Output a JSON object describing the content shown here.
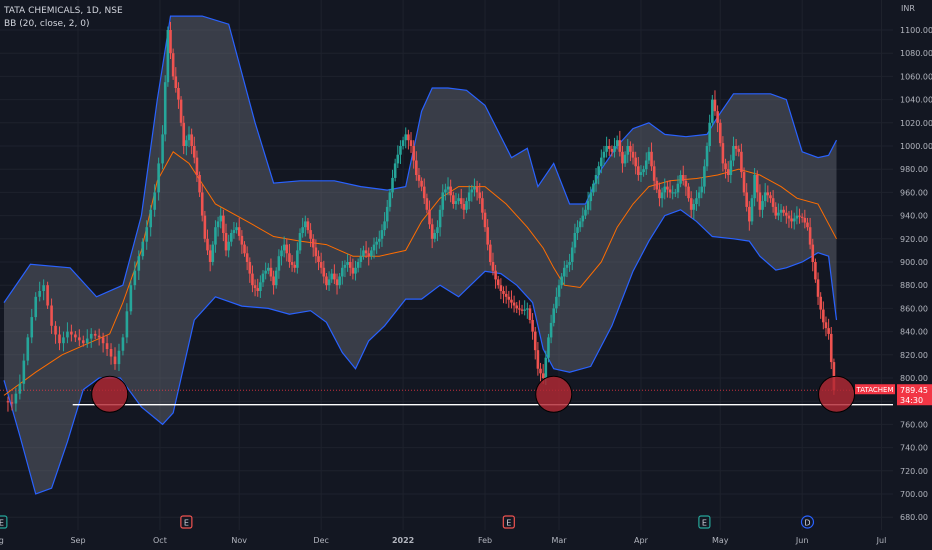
{
  "legend": {
    "symbol_line": "TATA CHEMICALS, 1D, NSE",
    "indicator_line": "BB (20, close, 2, 0)"
  },
  "colors": {
    "background": "#131722",
    "grid": "#1e222d",
    "up": "#26a69a",
    "down": "#ef5350",
    "band_line": "#2962ff",
    "band_fill": "#787b86",
    "basis": "#ff6d00",
    "support_line": "#ffffff",
    "marker": "#b22833",
    "axis_text": "#b2b5be",
    "price_tag": "#f23645"
  },
  "chart_data": {
    "type": "line",
    "title": "",
    "symbol": "TATA CHEMICALS",
    "interval": "1D",
    "exchange": "NSE",
    "currency": "INR",
    "y_axis_ticks": [
      680,
      700,
      720,
      740,
      760,
      780,
      800,
      820,
      840,
      860,
      880,
      900,
      920,
      940,
      960,
      980,
      1000,
      1020,
      1040,
      1060,
      1080,
      1100
    ],
    "ylim": [
      672,
      1112
    ],
    "x_axis_labels": [
      "Aug",
      "Sep",
      "Oct",
      "Nov",
      "Dec",
      "2022",
      "Feb",
      "Mar",
      "Apr",
      "May",
      "Jun",
      "Jul"
    ],
    "x_axis_label_days": [
      -3,
      28,
      59,
      89,
      120,
      151,
      182,
      210,
      241,
      271,
      302,
      332
    ],
    "xlim_days": [
      0,
      340
    ],
    "bollinger": {
      "label": "BB (20, close, 2, 0)",
      "upper": [
        [
          0,
          865
        ],
        [
          10,
          898
        ],
        [
          25,
          895
        ],
        [
          35,
          870
        ],
        [
          45,
          880
        ],
        [
          52,
          940
        ],
        [
          58,
          1040
        ],
        [
          63,
          1112
        ],
        [
          75,
          1112
        ],
        [
          85,
          1105
        ],
        [
          95,
          1020
        ],
        [
          102,
          968
        ],
        [
          112,
          970
        ],
        [
          125,
          970
        ],
        [
          135,
          965
        ],
        [
          145,
          962
        ],
        [
          152,
          965
        ],
        [
          158,
          1030
        ],
        [
          162,
          1050
        ],
        [
          168,
          1050
        ],
        [
          175,
          1048
        ],
        [
          182,
          1035
        ],
        [
          192,
          990
        ],
        [
          198,
          998
        ],
        [
          202,
          965
        ],
        [
          208,
          985
        ],
        [
          214,
          950
        ],
        [
          220,
          950
        ],
        [
          226,
          980
        ],
        [
          232,
          1000
        ],
        [
          238,
          1015
        ],
        [
          244,
          1020
        ],
        [
          250,
          1010
        ],
        [
          258,
          1008
        ],
        [
          266,
          1010
        ],
        [
          270,
          1025
        ],
        [
          276,
          1045
        ],
        [
          282,
          1045
        ],
        [
          290,
          1045
        ],
        [
          296,
          1040
        ],
        [
          302,
          995
        ],
        [
          308,
          990
        ],
        [
          312,
          992
        ],
        [
          315,
          1005
        ]
      ],
      "basis": [
        [
          0,
          785
        ],
        [
          12,
          805
        ],
        [
          22,
          820
        ],
        [
          32,
          830
        ],
        [
          40,
          838
        ],
        [
          45,
          865
        ],
        [
          52,
          910
        ],
        [
          58,
          970
        ],
        [
          64,
          995
        ],
        [
          70,
          985
        ],
        [
          80,
          950
        ],
        [
          92,
          935
        ],
        [
          102,
          922
        ],
        [
          112,
          918
        ],
        [
          122,
          915
        ],
        [
          132,
          905
        ],
        [
          142,
          905
        ],
        [
          152,
          910
        ],
        [
          158,
          935
        ],
        [
          165,
          955
        ],
        [
          172,
          965
        ],
        [
          182,
          965
        ],
        [
          190,
          950
        ],
        [
          198,
          930
        ],
        [
          204,
          912
        ],
        [
          208,
          895
        ],
        [
          212,
          880
        ],
        [
          218,
          878
        ],
        [
          226,
          900
        ],
        [
          232,
          930
        ],
        [
          238,
          950
        ],
        [
          244,
          965
        ],
        [
          252,
          970
        ],
        [
          262,
          972
        ],
        [
          270,
          975
        ],
        [
          278,
          980
        ],
        [
          286,
          975
        ],
        [
          294,
          965
        ],
        [
          300,
          955
        ],
        [
          308,
          950
        ],
        [
          315,
          920
        ]
      ],
      "lower": [
        [
          0,
          798
        ],
        [
          6,
          750
        ],
        [
          12,
          700
        ],
        [
          18,
          705
        ],
        [
          24,
          745
        ],
        [
          30,
          790
        ],
        [
          36,
          800
        ],
        [
          44,
          800
        ],
        [
          52,
          775
        ],
        [
          60,
          760
        ],
        [
          64,
          770
        ],
        [
          72,
          850
        ],
        [
          80,
          870
        ],
        [
          90,
          862
        ],
        [
          100,
          860
        ],
        [
          108,
          855
        ],
        [
          116,
          858
        ],
        [
          122,
          848
        ],
        [
          128,
          822
        ],
        [
          133,
          808
        ],
        [
          138,
          832
        ],
        [
          144,
          845
        ],
        [
          152,
          868
        ],
        [
          158,
          868
        ],
        [
          165,
          880
        ],
        [
          172,
          870
        ],
        [
          182,
          892
        ],
        [
          188,
          890
        ],
        [
          194,
          880
        ],
        [
          200,
          865
        ],
        [
          204,
          825
        ],
        [
          208,
          808
        ],
        [
          214,
          805
        ],
        [
          222,
          810
        ],
        [
          230,
          845
        ],
        [
          238,
          892
        ],
        [
          244,
          918
        ],
        [
          250,
          940
        ],
        [
          256,
          945
        ],
        [
          262,
          935
        ],
        [
          268,
          922
        ],
        [
          276,
          920
        ],
        [
          282,
          918
        ],
        [
          286,
          905
        ],
        [
          292,
          893
        ],
        [
          296,
          895
        ],
        [
          302,
          900
        ],
        [
          308,
          908
        ],
        [
          312,
          905
        ],
        [
          315,
          850
        ]
      ]
    },
    "closes": [
      [
        0,
        780
      ],
      [
        3,
        778
      ],
      [
        6,
        795
      ],
      [
        9,
        835
      ],
      [
        12,
        870
      ],
      [
        15,
        880
      ],
      [
        18,
        845
      ],
      [
        21,
        830
      ],
      [
        24,
        840
      ],
      [
        27,
        835
      ],
      [
        30,
        830
      ],
      [
        33,
        838
      ],
      [
        36,
        835
      ],
      [
        39,
        825
      ],
      [
        42,
        812
      ],
      [
        45,
        835
      ],
      [
        48,
        880
      ],
      [
        51,
        905
      ],
      [
        54,
        930
      ],
      [
        57,
        960
      ],
      [
        60,
        1010
      ],
      [
        62,
        1100
      ],
      [
        64,
        1060
      ],
      [
        66,
        1040
      ],
      [
        68,
        1000
      ],
      [
        70,
        1010
      ],
      [
        72,
        990
      ],
      [
        74,
        960
      ],
      [
        76,
        920
      ],
      [
        78,
        900
      ],
      [
        80,
        930
      ],
      [
        82,
        940
      ],
      [
        84,
        910
      ],
      [
        86,
        925
      ],
      [
        88,
        930
      ],
      [
        90,
        915
      ],
      [
        92,
        900
      ],
      [
        94,
        880
      ],
      [
        96,
        875
      ],
      [
        98,
        890
      ],
      [
        100,
        895
      ],
      [
        102,
        880
      ],
      [
        104,
        905
      ],
      [
        106,
        915
      ],
      [
        108,
        900
      ],
      [
        110,
        895
      ],
      [
        112,
        925
      ],
      [
        114,
        935
      ],
      [
        116,
        920
      ],
      [
        118,
        905
      ],
      [
        120,
        895
      ],
      [
        122,
        880
      ],
      [
        124,
        890
      ],
      [
        126,
        880
      ],
      [
        128,
        895
      ],
      [
        130,
        900
      ],
      [
        132,
        890
      ],
      [
        134,
        900
      ],
      [
        136,
        910
      ],
      [
        138,
        905
      ],
      [
        140,
        915
      ],
      [
        142,
        920
      ],
      [
        144,
        935
      ],
      [
        146,
        960
      ],
      [
        148,
        985
      ],
      [
        150,
        1000
      ],
      [
        152,
        1010
      ],
      [
        154,
        1000
      ],
      [
        156,
        975
      ],
      [
        158,
        965
      ],
      [
        160,
        945
      ],
      [
        162,
        920
      ],
      [
        164,
        930
      ],
      [
        166,
        960
      ],
      [
        168,
        965
      ],
      [
        170,
        950
      ],
      [
        172,
        955
      ],
      [
        174,
        945
      ],
      [
        176,
        960
      ],
      [
        178,
        965
      ],
      [
        180,
        955
      ],
      [
        182,
        930
      ],
      [
        184,
        900
      ],
      [
        186,
        885
      ],
      [
        188,
        875
      ],
      [
        190,
        870
      ],
      [
        192,
        865
      ],
      [
        194,
        860
      ],
      [
        196,
        858
      ],
      [
        198,
        860
      ],
      [
        200,
        840
      ],
      [
        202,
        808
      ],
      [
        204,
        800
      ],
      [
        206,
        835
      ],
      [
        208,
        860
      ],
      [
        210,
        880
      ],
      [
        212,
        895
      ],
      [
        214,
        900
      ],
      [
        216,
        925
      ],
      [
        218,
        935
      ],
      [
        220,
        945
      ],
      [
        222,
        960
      ],
      [
        224,
        975
      ],
      [
        226,
        990
      ],
      [
        228,
        1000
      ],
      [
        230,
        995
      ],
      [
        232,
        1005
      ],
      [
        234,
        985
      ],
      [
        236,
        1000
      ],
      [
        238,
        990
      ],
      [
        240,
        975
      ],
      [
        242,
        980
      ],
      [
        244,
        995
      ],
      [
        246,
        970
      ],
      [
        248,
        955
      ],
      [
        250,
        965
      ],
      [
        252,
        960
      ],
      [
        254,
        960
      ],
      [
        256,
        975
      ],
      [
        258,
        965
      ],
      [
        260,
        945
      ],
      [
        262,
        955
      ],
      [
        264,
        965
      ],
      [
        266,
        1000
      ],
      [
        268,
        1040
      ],
      [
        270,
        1020
      ],
      [
        272,
        985
      ],
      [
        274,
        975
      ],
      [
        276,
        1000
      ],
      [
        278,
        995
      ],
      [
        280,
        960
      ],
      [
        282,
        935
      ],
      [
        284,
        975
      ],
      [
        286,
        945
      ],
      [
        288,
        960
      ],
      [
        290,
        955
      ],
      [
        292,
        940
      ],
      [
        294,
        945
      ],
      [
        296,
        940
      ],
      [
        298,
        935
      ],
      [
        300,
        940
      ],
      [
        302,
        938
      ],
      [
        304,
        930
      ],
      [
        306,
        900
      ],
      [
        308,
        870
      ],
      [
        310,
        848
      ],
      [
        312,
        838
      ],
      [
        314,
        789.45
      ]
    ],
    "support_level": 777,
    "touch_points": [
      [
        40,
        786
      ],
      [
        208,
        786
      ],
      [
        315,
        786
      ]
    ],
    "current_price_line": 789.45,
    "current_price_tag": {
      "symbol": "TATACHEM",
      "price": "789.45",
      "countdown": "34:30"
    },
    "event_markers": [
      {
        "letter": "E",
        "day": -1,
        "kind": "earnings"
      },
      {
        "letter": "E",
        "day": 69,
        "kind": "earnings"
      },
      {
        "letter": "E",
        "day": 191,
        "kind": "earnings"
      },
      {
        "letter": "E",
        "day": 265,
        "kind": "earnings"
      },
      {
        "letter": "D",
        "day": 304,
        "kind": "dividend"
      }
    ],
    "grid": true
  }
}
